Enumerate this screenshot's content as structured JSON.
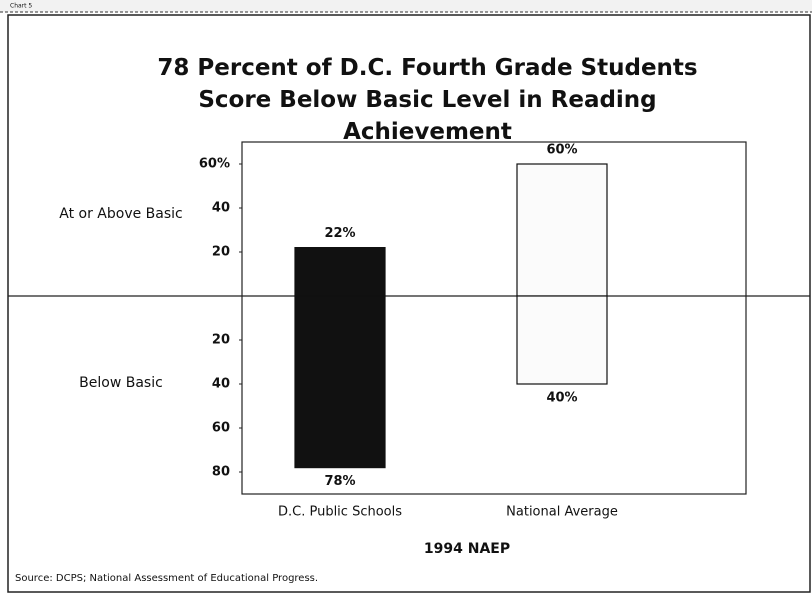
{
  "header": "Chart 5",
  "chart_data": {
    "type": "diverging-bar",
    "title": "78 Percent of D.C. Fourth Grade Students Score Below Basic Level in Reading Achievement",
    "categories": [
      "D.C. Public Schools",
      "National Average"
    ],
    "bar_colors": [
      "#111111",
      "#fbfbfb"
    ],
    "series": [
      {
        "name": "At or Above Basic",
        "direction": "up",
        "values": [
          22,
          60
        ],
        "value_labels": [
          "22%",
          "60%"
        ]
      },
      {
        "name": "Below Basic",
        "direction": "down",
        "values": [
          78,
          40
        ],
        "value_labels": [
          "78%",
          "40%"
        ]
      }
    ],
    "ylim": [
      -90,
      70
    ],
    "yticks": [
      {
        "value": 60,
        "label": "60%"
      },
      40,
      20,
      {
        "value": -20,
        "label": "20"
      },
      {
        "value": -40,
        "label": "40"
      },
      {
        "value": -60,
        "label": "60"
      },
      {
        "value": -80,
        "label": "80"
      }
    ],
    "x_label": "1994 NAEP",
    "source": "Source: DCPS; National Assessment of Educational Progress."
  }
}
